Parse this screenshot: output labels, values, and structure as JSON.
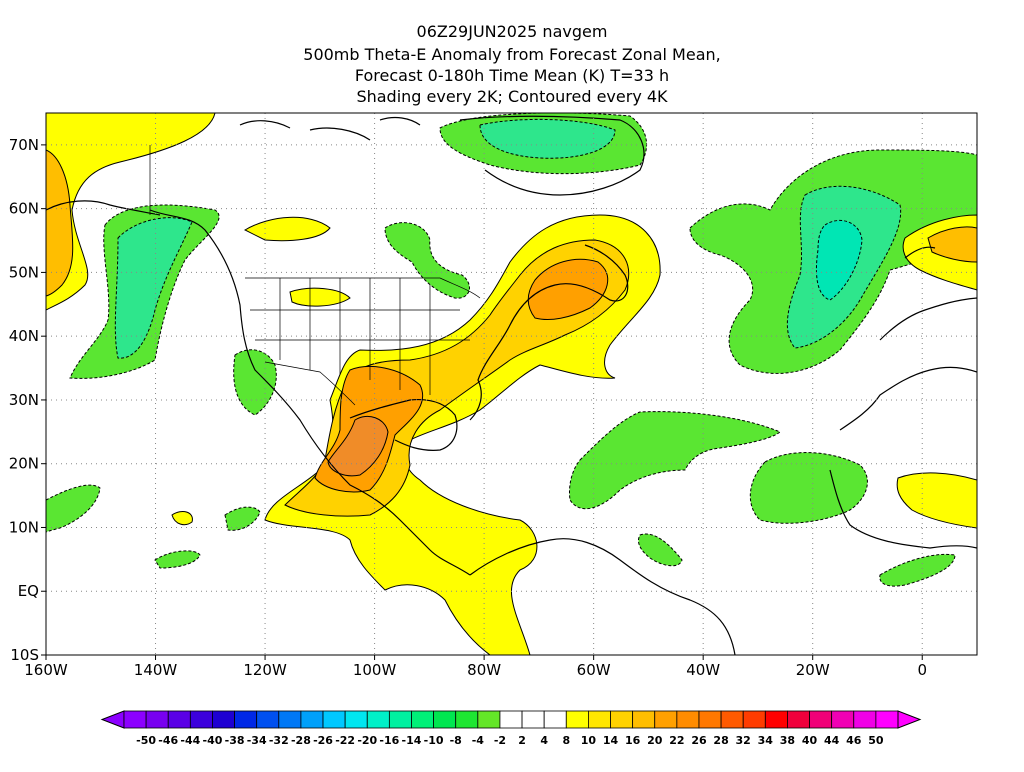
{
  "title": {
    "line1": "06Z29JUN2025 navgem",
    "line2": "500mb Theta-E Anomaly from Forecast Zonal Mean,",
    "line3": "Forecast 0-180h Time Mean (K) T=33 h",
    "line4": "Shading every 2K; Contoured every 4K"
  },
  "map": {
    "lon_range": [
      -160,
      10
    ],
    "lat_range": [
      -10,
      75
    ],
    "lat_ticks": [
      {
        "v": 70,
        "label": "70N"
      },
      {
        "v": 60,
        "label": "60N"
      },
      {
        "v": 50,
        "label": "50N"
      },
      {
        "v": 40,
        "label": "40N"
      },
      {
        "v": 30,
        "label": "30N"
      },
      {
        "v": 20,
        "label": "20N"
      },
      {
        "v": 10,
        "label": "10N"
      },
      {
        "v": 0,
        "label": "EQ"
      },
      {
        "v": -10,
        "label": "10S"
      }
    ],
    "lon_ticks": [
      {
        "v": -160,
        "label": "160W"
      },
      {
        "v": -140,
        "label": "140W"
      },
      {
        "v": -120,
        "label": "120W"
      },
      {
        "v": -100,
        "label": "100W"
      },
      {
        "v": -80,
        "label": "80W"
      },
      {
        "v": -60,
        "label": "60W"
      },
      {
        "v": -40,
        "label": "40W"
      },
      {
        "v": -20,
        "label": "20W"
      },
      {
        "v": 0,
        "label": "0"
      }
    ]
  },
  "colorbar": {
    "labels": [
      "-50",
      "-46",
      "-44",
      "-40",
      "-38",
      "-34",
      "-32",
      "-28",
      "-26",
      "-22",
      "-20",
      "-16",
      "-14",
      "-10",
      "-8",
      "-4",
      "-2",
      "2",
      "4",
      "8",
      "10",
      "14",
      "16",
      "20",
      "22",
      "26",
      "28",
      "32",
      "34",
      "38",
      "40",
      "44",
      "46",
      "50"
    ],
    "colors": [
      "#8c00ff",
      "#7800f0",
      "#5a00e6",
      "#3c00dc",
      "#1e00d2",
      "#0028e6",
      "#0050f0",
      "#0078f5",
      "#00a0fa",
      "#00c8ff",
      "#00e6f0",
      "#00f0c8",
      "#00f0a0",
      "#00f078",
      "#00e650",
      "#1ee632",
      "#64e628",
      "#ffffff",
      "#ffffff",
      "#ffffff",
      "#ffff00",
      "#ffe600",
      "#ffd200",
      "#ffbe00",
      "#ffa000",
      "#ff8c00",
      "#ff7800",
      "#ff5a00",
      "#ff3c00",
      "#ff0000",
      "#f0003c",
      "#f00078",
      "#f000b4",
      "#f000e6",
      "#ff00ff"
    ],
    "left_arrow": "#8c00ff",
    "right_arrow": "#ff00ff"
  },
  "palette": {
    "green": "#5ae632",
    "light_green": "#2ee66a",
    "cyan_green": "#00e6a0",
    "yellow": "#ffff00",
    "gold": "#ffd200",
    "orange": "#ffa000",
    "dark_orange": "#f08c28"
  }
}
